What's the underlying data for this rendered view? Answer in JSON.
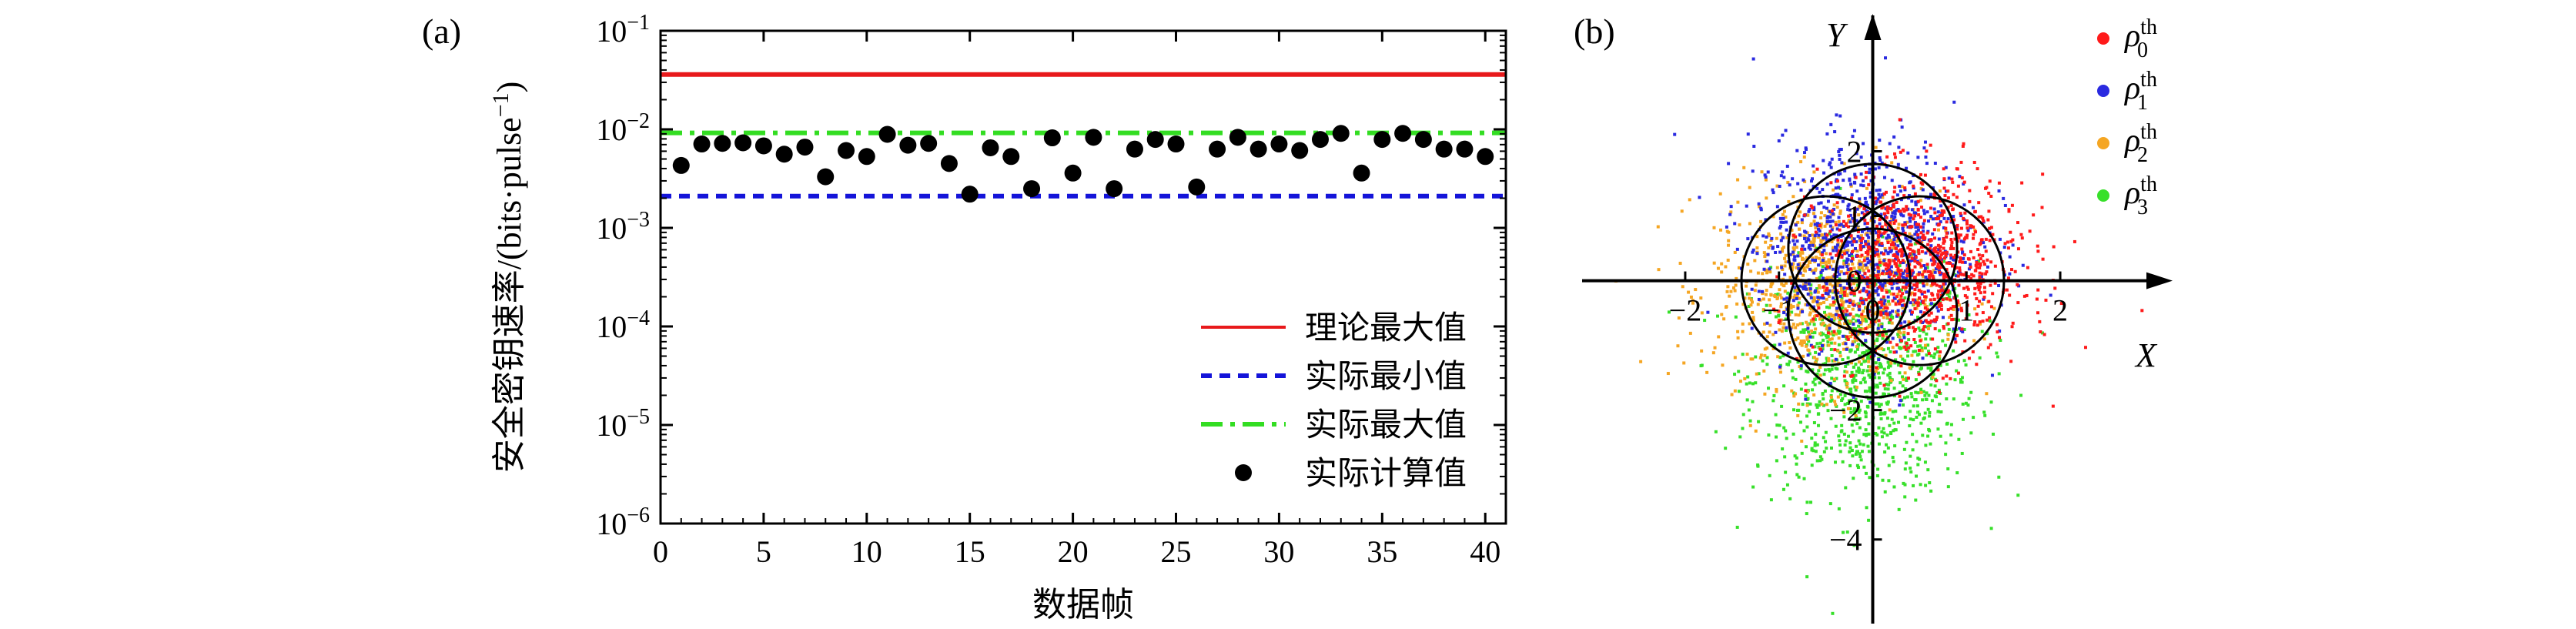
{
  "chart_data": [
    {
      "type": "scatter",
      "panel_label": "(a)",
      "xlabel": "数据帧",
      "ylabel": "安全密钥速率/(bits·pulse",
      "ylabel_sup": "−1",
      "ylabel_close": ")",
      "xlim": [
        0,
        41
      ],
      "ylim": [
        1e-06,
        0.1
      ],
      "yscale": "log",
      "xticks": [
        0,
        5,
        10,
        15,
        20,
        25,
        30,
        35,
        40
      ],
      "yticks": [
        {
          "value": 1e-06,
          "base": "10",
          "exp": "−6"
        },
        {
          "value": 1e-05,
          "base": "10",
          "exp": "−5"
        },
        {
          "value": 0.0001,
          "base": "10",
          "exp": "−4"
        },
        {
          "value": 0.001,
          "base": "10",
          "exp": "−3"
        },
        {
          "value": 0.01,
          "base": "10",
          "exp": "−2"
        },
        {
          "value": 0.1,
          "base": "10",
          "exp": "−1"
        }
      ],
      "hlines": [
        {
          "name": "理论最大值",
          "value": 0.036,
          "color": "#e8191b",
          "style": "solid"
        },
        {
          "name": "实际最小值",
          "value": 0.0021,
          "color": "#1414d9",
          "style": "dotted"
        },
        {
          "name": "实际最大值",
          "value": 0.0092,
          "color": "#33dd22",
          "style": "dashdot"
        }
      ],
      "series": [
        {
          "name": "实际计算值",
          "color": "#000000",
          "x": [
            1,
            2,
            3,
            4,
            5,
            6,
            7,
            8,
            9,
            10,
            11,
            12,
            13,
            14,
            15,
            16,
            17,
            18,
            19,
            20,
            21,
            22,
            23,
            24,
            25,
            26,
            27,
            28,
            29,
            30,
            31,
            32,
            33,
            34,
            35,
            36,
            37,
            38,
            39,
            40
          ],
          "y": [
            0.0043,
            0.0071,
            0.0072,
            0.0073,
            0.0068,
            0.0056,
            0.0066,
            0.0033,
            0.0061,
            0.0053,
            0.0089,
            0.0069,
            0.0072,
            0.0045,
            0.0022,
            0.0065,
            0.0053,
            0.0025,
            0.0082,
            0.0036,
            0.0083,
            0.0025,
            0.0063,
            0.0079,
            0.0071,
            0.0026,
            0.0063,
            0.0083,
            0.0063,
            0.0071,
            0.0061,
            0.0079,
            0.0091,
            0.0036,
            0.0079,
            0.0091,
            0.0079,
            0.0063,
            0.0063,
            0.0053
          ]
        }
      ],
      "legend_position": "bottom-right"
    },
    {
      "type": "scatter",
      "panel_label": "(b)",
      "xlabel": "X",
      "ylabel": "Y",
      "xlim": [
        -3.1,
        3.1
      ],
      "ylim": [
        -5.3,
        4.1
      ],
      "xticks": [
        {
          "value": -2,
          "label": "−2"
        },
        {
          "value": -1,
          "label": "−1"
        },
        {
          "value": 0,
          "label": "0"
        },
        {
          "value": 1,
          "label": "1"
        },
        {
          "value": 2,
          "label": "2"
        }
      ],
      "yticks": [
        {
          "value": 2,
          "label": "2"
        },
        {
          "value": 1,
          "label": "1"
        },
        {
          "value": 0,
          "label": "0"
        },
        {
          "value": -2,
          "label": "−2"
        },
        {
          "value": -4,
          "label": "−4"
        }
      ],
      "series": [
        {
          "name": "ρ",
          "sub": "0",
          "sup": "th",
          "color": "#ff1a1a",
          "center": [
            0.5,
            0.2
          ],
          "spread": [
            0.55,
            0.7
          ]
        },
        {
          "name": "ρ",
          "sub": "1",
          "sup": "th",
          "color": "#2a2ae0",
          "center": [
            -0.1,
            0.6
          ],
          "spread": [
            0.6,
            0.8
          ]
        },
        {
          "name": "ρ",
          "sub": "2",
          "sup": "th",
          "color": "#f5a623",
          "center": [
            -0.5,
            -0.1
          ],
          "spread": [
            0.6,
            0.75
          ]
        },
        {
          "name": "ρ",
          "sub": "3",
          "sup": "th",
          "color": "#37e02a",
          "center": [
            -0.1,
            -1.5
          ],
          "spread": [
            0.6,
            0.9
          ]
        }
      ],
      "circles": [
        {
          "center": [
            0.5,
            0
          ],
          "radius": 0.9
        },
        {
          "center": [
            -0.5,
            0
          ],
          "radius": 0.9
        },
        {
          "center": [
            0,
            0.5
          ],
          "radius": 0.9
        },
        {
          "center": [
            0,
            -0.5
          ],
          "radius": 0.9
        }
      ],
      "legend_position": "top-right"
    }
  ]
}
